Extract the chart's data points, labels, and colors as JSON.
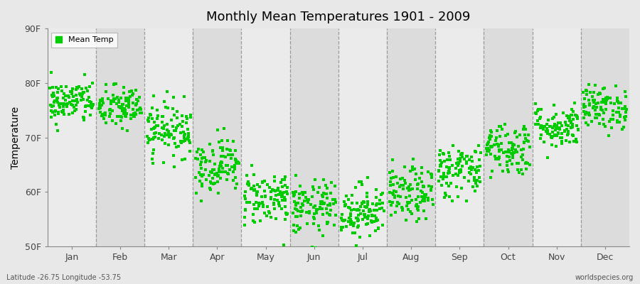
{
  "title": "Monthly Mean Temperatures 1901 - 2009",
  "ylabel": "Temperature",
  "xlabel_bottom_left": "Latitude -26.75 Longitude -53.75",
  "xlabel_bottom_right": "worldspecies.org",
  "yticks": [
    50,
    60,
    70,
    80,
    90
  ],
  "ytick_labels": [
    "50F",
    "60F",
    "70F",
    "80F",
    "90F"
  ],
  "months": [
    "Jan",
    "Feb",
    "Mar",
    "Apr",
    "May",
    "Jun",
    "Jul",
    "Aug",
    "Sep",
    "Oct",
    "Nov",
    "Dec"
  ],
  "dot_color": "#00cc00",
  "bg_color_light": "#e8e8e8",
  "bg_color_dark": "#d8d8d8",
  "plot_bg_light": "#ebebeb",
  "plot_bg_dark": "#dcdcdc",
  "monthly_mean_temps_F": [
    76.5,
    75.5,
    71.5,
    65.0,
    59.0,
    57.0,
    56.5,
    59.5,
    64.0,
    68.0,
    72.0,
    75.5
  ],
  "monthly_std_F": [
    2.0,
    2.0,
    2.5,
    2.5,
    2.5,
    2.5,
    2.5,
    2.5,
    2.5,
    2.5,
    2.0,
    2.0
  ],
  "n_years": 109,
  "ylim": [
    50,
    90
  ],
  "figsize": [
    9.0,
    4.0
  ],
  "dpi": 100
}
